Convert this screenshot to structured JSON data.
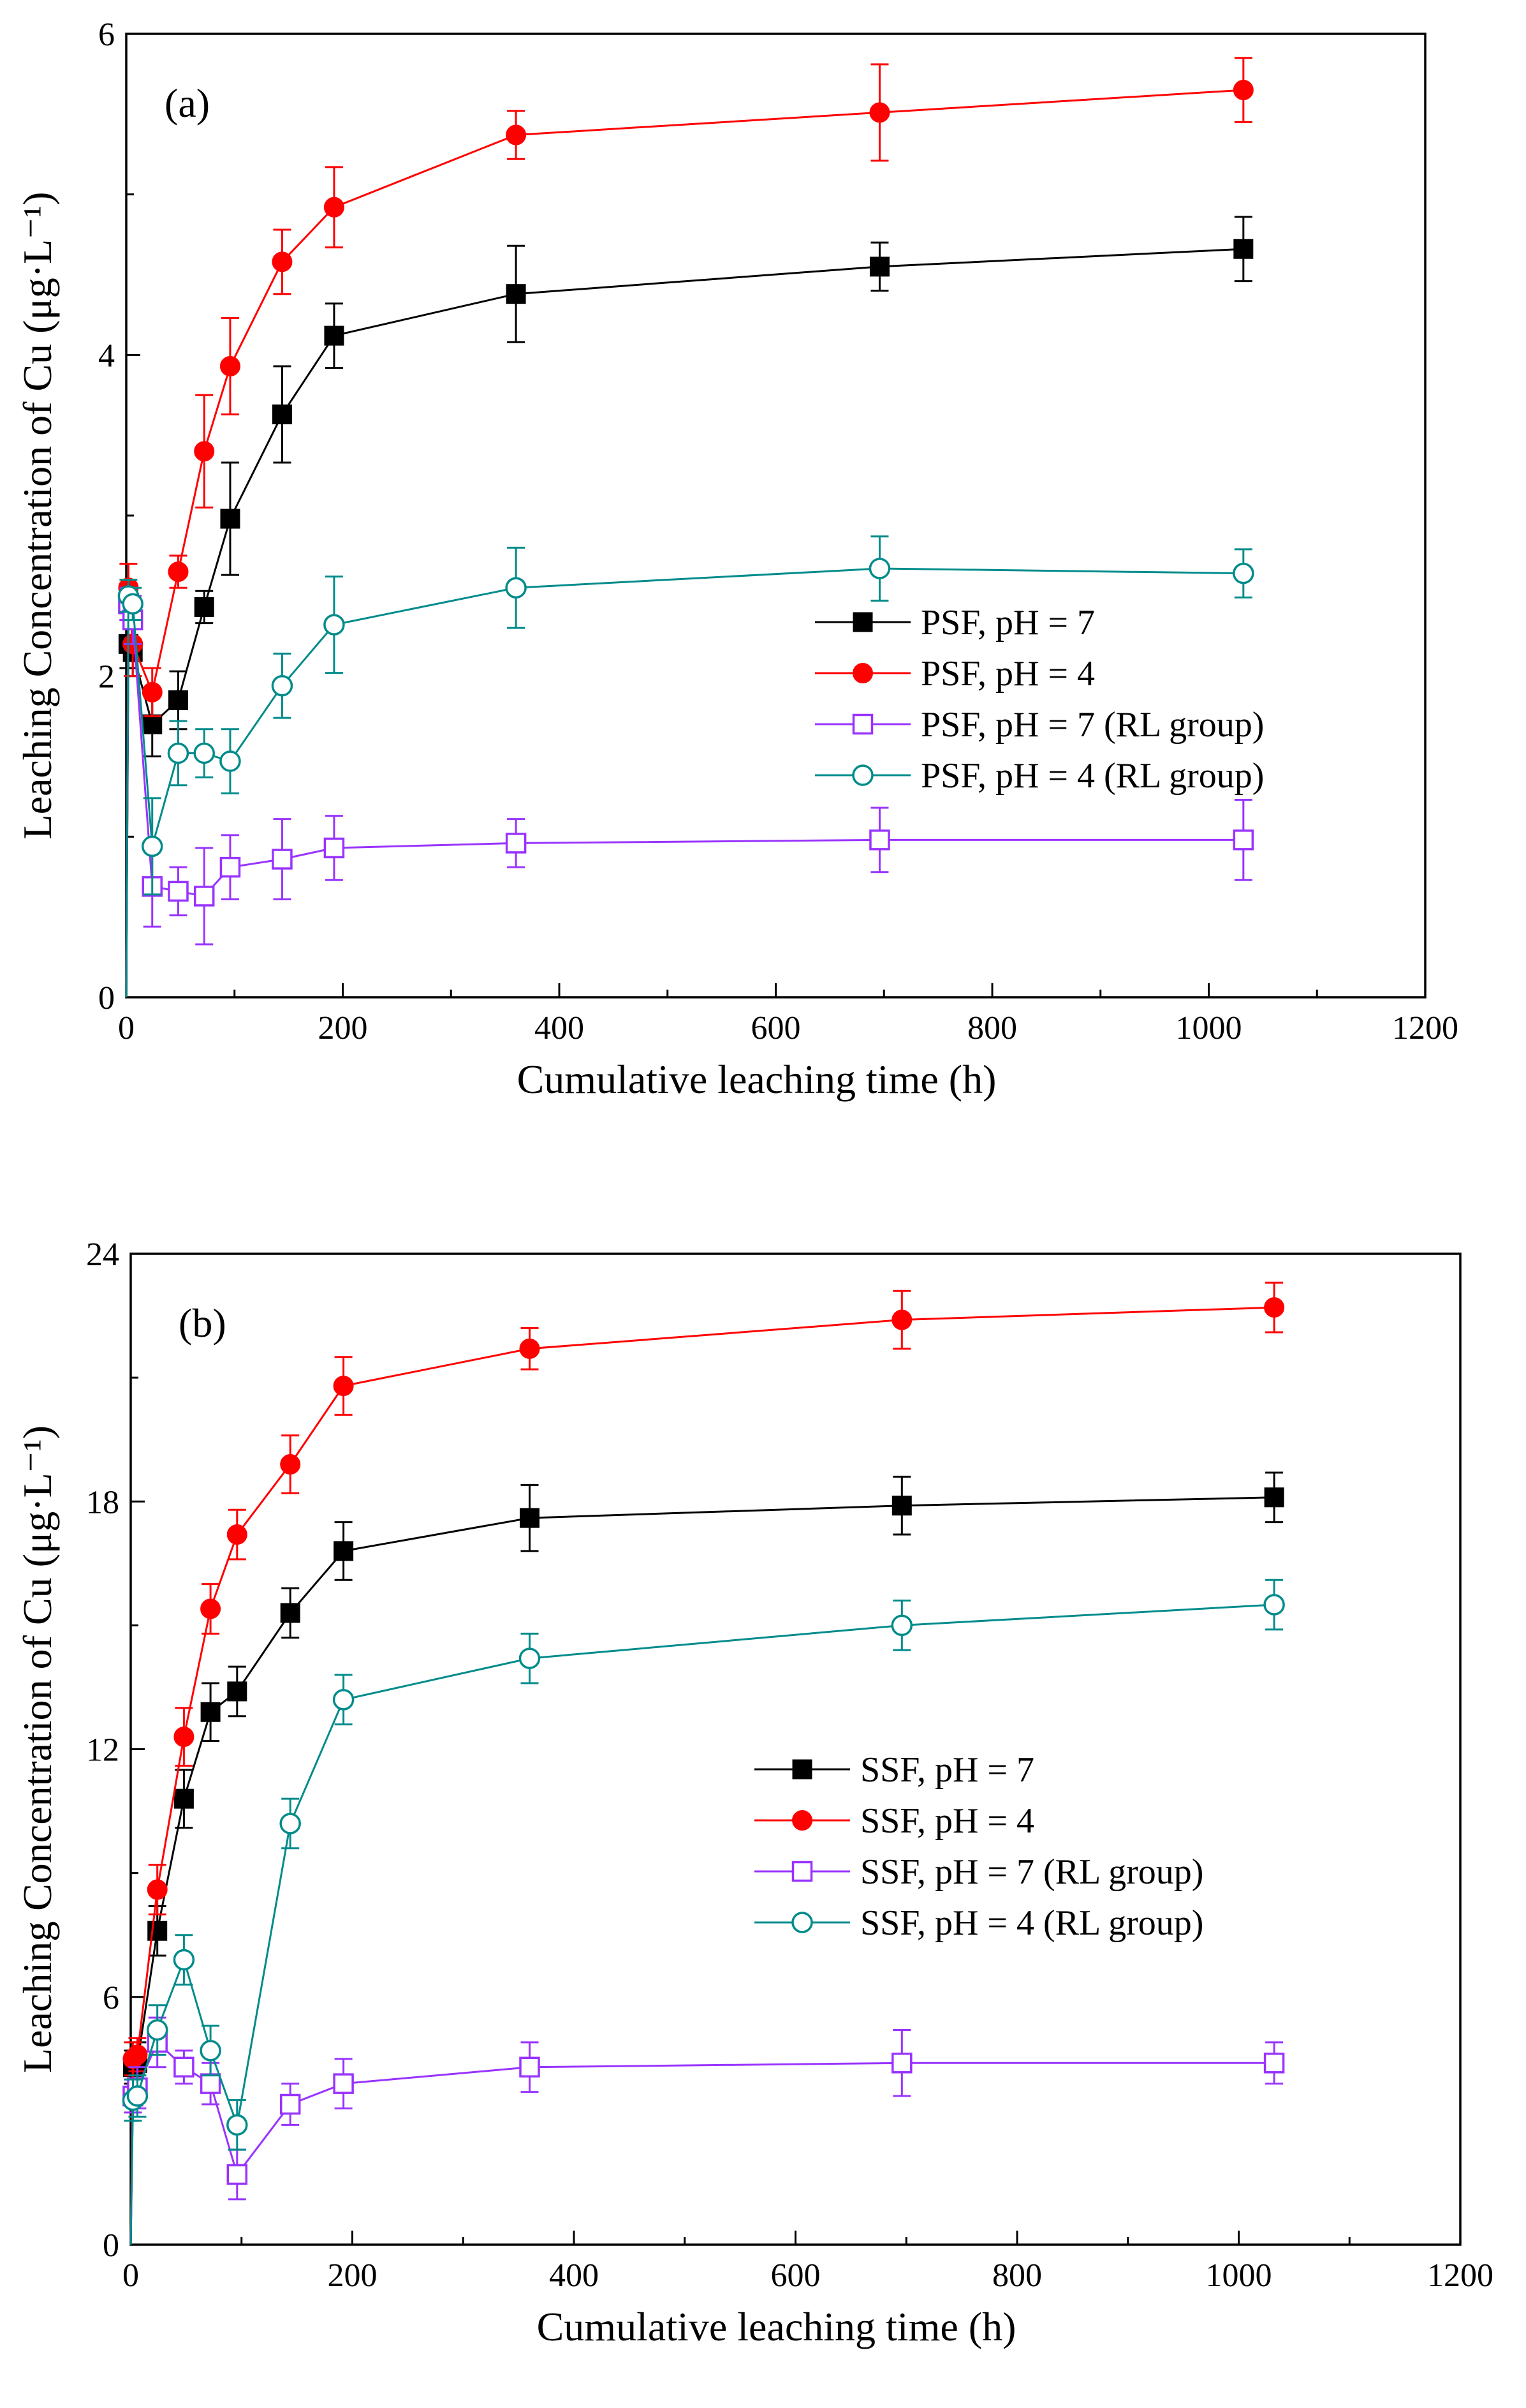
{
  "figure": {
    "panels_count": 2
  },
  "chart_data": [
    {
      "type": "line",
      "panel_label": "(a)",
      "xlabel": "Cumulative leaching time (h)",
      "ylabel": "Leaching Concentration of Cu (μg·L⁻¹)",
      "xlim": [
        0,
        1200
      ],
      "ylim": [
        0,
        6
      ],
      "xticks": [
        0,
        200,
        400,
        600,
        800,
        1000,
        1200
      ],
      "yticks": [
        0,
        2,
        4,
        6
      ],
      "x_tick_labels": [
        "0",
        "200",
        "400",
        "600",
        "800",
        "1000",
        "1200"
      ],
      "y_tick_labels": [
        "0",
        "2",
        "4",
        "6"
      ],
      "legend_position": "center-right",
      "series": [
        {
          "name": "PSF, pH = 7",
          "color": "#000000",
          "marker": "square-filled",
          "x": [
            0,
            2,
            6,
            24,
            48,
            72,
            96,
            144,
            192,
            360,
            696,
            1032
          ],
          "y": [
            0,
            2.2,
            2.15,
            1.7,
            1.85,
            2.43,
            2.98,
            3.63,
            4.12,
            4.38,
            4.55,
            4.66
          ],
          "err": [
            0,
            0.15,
            0.15,
            0.2,
            0.18,
            0.1,
            0.35,
            0.3,
            0.2,
            0.3,
            0.15,
            0.2
          ]
        },
        {
          "name": "PSF, pH = 4",
          "color": "#ff0000",
          "marker": "circle-filled",
          "x": [
            0,
            2,
            6,
            24,
            48,
            72,
            96,
            144,
            192,
            360,
            696,
            1032
          ],
          "y": [
            0,
            2.55,
            2.2,
            1.9,
            2.65,
            3.4,
            3.93,
            4.58,
            4.92,
            5.37,
            5.51,
            5.65
          ],
          "err": [
            0,
            0.15,
            0.2,
            0.15,
            0.1,
            0.35,
            0.3,
            0.2,
            0.25,
            0.15,
            0.3,
            0.2
          ]
        },
        {
          "name": "PSF, pH = 7 (RL group)",
          "color": "#9933ff",
          "marker": "square-open",
          "x": [
            0,
            2,
            6,
            24,
            48,
            72,
            96,
            144,
            192,
            360,
            696,
            1032
          ],
          "y": [
            0,
            2.45,
            2.35,
            0.69,
            0.66,
            0.63,
            0.81,
            0.86,
            0.93,
            0.96,
            0.98,
            0.98
          ],
          "err": [
            0,
            0.1,
            0.15,
            0.25,
            0.15,
            0.3,
            0.2,
            0.25,
            0.2,
            0.15,
            0.2,
            0.25
          ]
        },
        {
          "name": "PSF, pH = 4 (RL group)",
          "color": "#008b8b",
          "marker": "circle-open",
          "x": [
            0,
            2,
            6,
            24,
            48,
            72,
            96,
            144,
            192,
            360,
            696,
            1032
          ],
          "y": [
            0,
            2.5,
            2.45,
            0.94,
            1.52,
            1.52,
            1.47,
            1.94,
            2.32,
            2.55,
            2.67,
            2.64
          ],
          "err": [
            0,
            0.1,
            0.1,
            0.3,
            0.2,
            0.15,
            0.2,
            0.2,
            0.3,
            0.25,
            0.2,
            0.15
          ]
        }
      ]
    },
    {
      "type": "line",
      "panel_label": "(b)",
      "xlabel": "Cumulative leaching time (h)",
      "ylabel": "Leaching Concentration of Cu (μg·L⁻¹)",
      "xlim": [
        0,
        1200
      ],
      "ylim": [
        0,
        24
      ],
      "xticks": [
        0,
        200,
        400,
        600,
        800,
        1000,
        1200
      ],
      "yticks": [
        0,
        6,
        12,
        18,
        24
      ],
      "x_tick_labels": [
        "0",
        "200",
        "400",
        "600",
        "800",
        "1000",
        "1200"
      ],
      "y_tick_labels": [
        "0",
        "6",
        "12",
        "18",
        "24"
      ],
      "legend_position": "center-right",
      "series": [
        {
          "name": "SSF, pH = 7",
          "color": "#000000",
          "marker": "square-filled",
          "x": [
            0,
            2,
            6,
            24,
            48,
            72,
            96,
            144,
            192,
            360,
            696,
            1032
          ],
          "y": [
            0,
            4.3,
            4.4,
            7.6,
            10.8,
            12.9,
            13.4,
            15.3,
            16.8,
            17.6,
            17.9,
            18.1
          ],
          "err": [
            0,
            0.4,
            0.5,
            0.6,
            0.7,
            0.7,
            0.6,
            0.6,
            0.7,
            0.8,
            0.7,
            0.6
          ]
        },
        {
          "name": "SSF, pH = 4",
          "color": "#ff0000",
          "marker": "circle-filled",
          "x": [
            0,
            2,
            6,
            24,
            48,
            72,
            96,
            144,
            192,
            360,
            696,
            1032
          ],
          "y": [
            0,
            4.5,
            4.6,
            8.6,
            12.3,
            15.4,
            17.2,
            18.9,
            20.8,
            21.7,
            22.4,
            22.7
          ],
          "err": [
            0,
            0.4,
            0.4,
            0.6,
            0.7,
            0.6,
            0.6,
            0.7,
            0.7,
            0.5,
            0.7,
            0.6
          ]
        },
        {
          "name": "SSF, pH = 7 (RL group)",
          "color": "#9933ff",
          "marker": "square-open",
          "x": [
            0,
            2,
            6,
            24,
            48,
            72,
            96,
            144,
            192,
            360,
            696,
            1032
          ],
          "y": [
            0,
            3.6,
            3.8,
            4.9,
            4.3,
            3.9,
            1.7,
            3.4,
            3.9,
            4.3,
            4.4,
            4.4
          ],
          "err": [
            0,
            0.4,
            0.5,
            0.6,
            0.4,
            0.5,
            0.6,
            0.5,
            0.6,
            0.6,
            0.8,
            0.5
          ]
        },
        {
          "name": "SSF, pH = 4 (RL group)",
          "color": "#008b8b",
          "marker": "circle-open",
          "x": [
            0,
            2,
            6,
            24,
            48,
            72,
            96,
            144,
            192,
            360,
            696,
            1032
          ],
          "y": [
            0,
            3.5,
            3.6,
            5.2,
            6.9,
            4.7,
            2.9,
            10.2,
            13.2,
            14.2,
            15.0,
            15.5
          ],
          "err": [
            0,
            0.5,
            0.5,
            0.6,
            0.6,
            0.6,
            0.6,
            0.6,
            0.6,
            0.6,
            0.6,
            0.6
          ]
        }
      ]
    }
  ]
}
